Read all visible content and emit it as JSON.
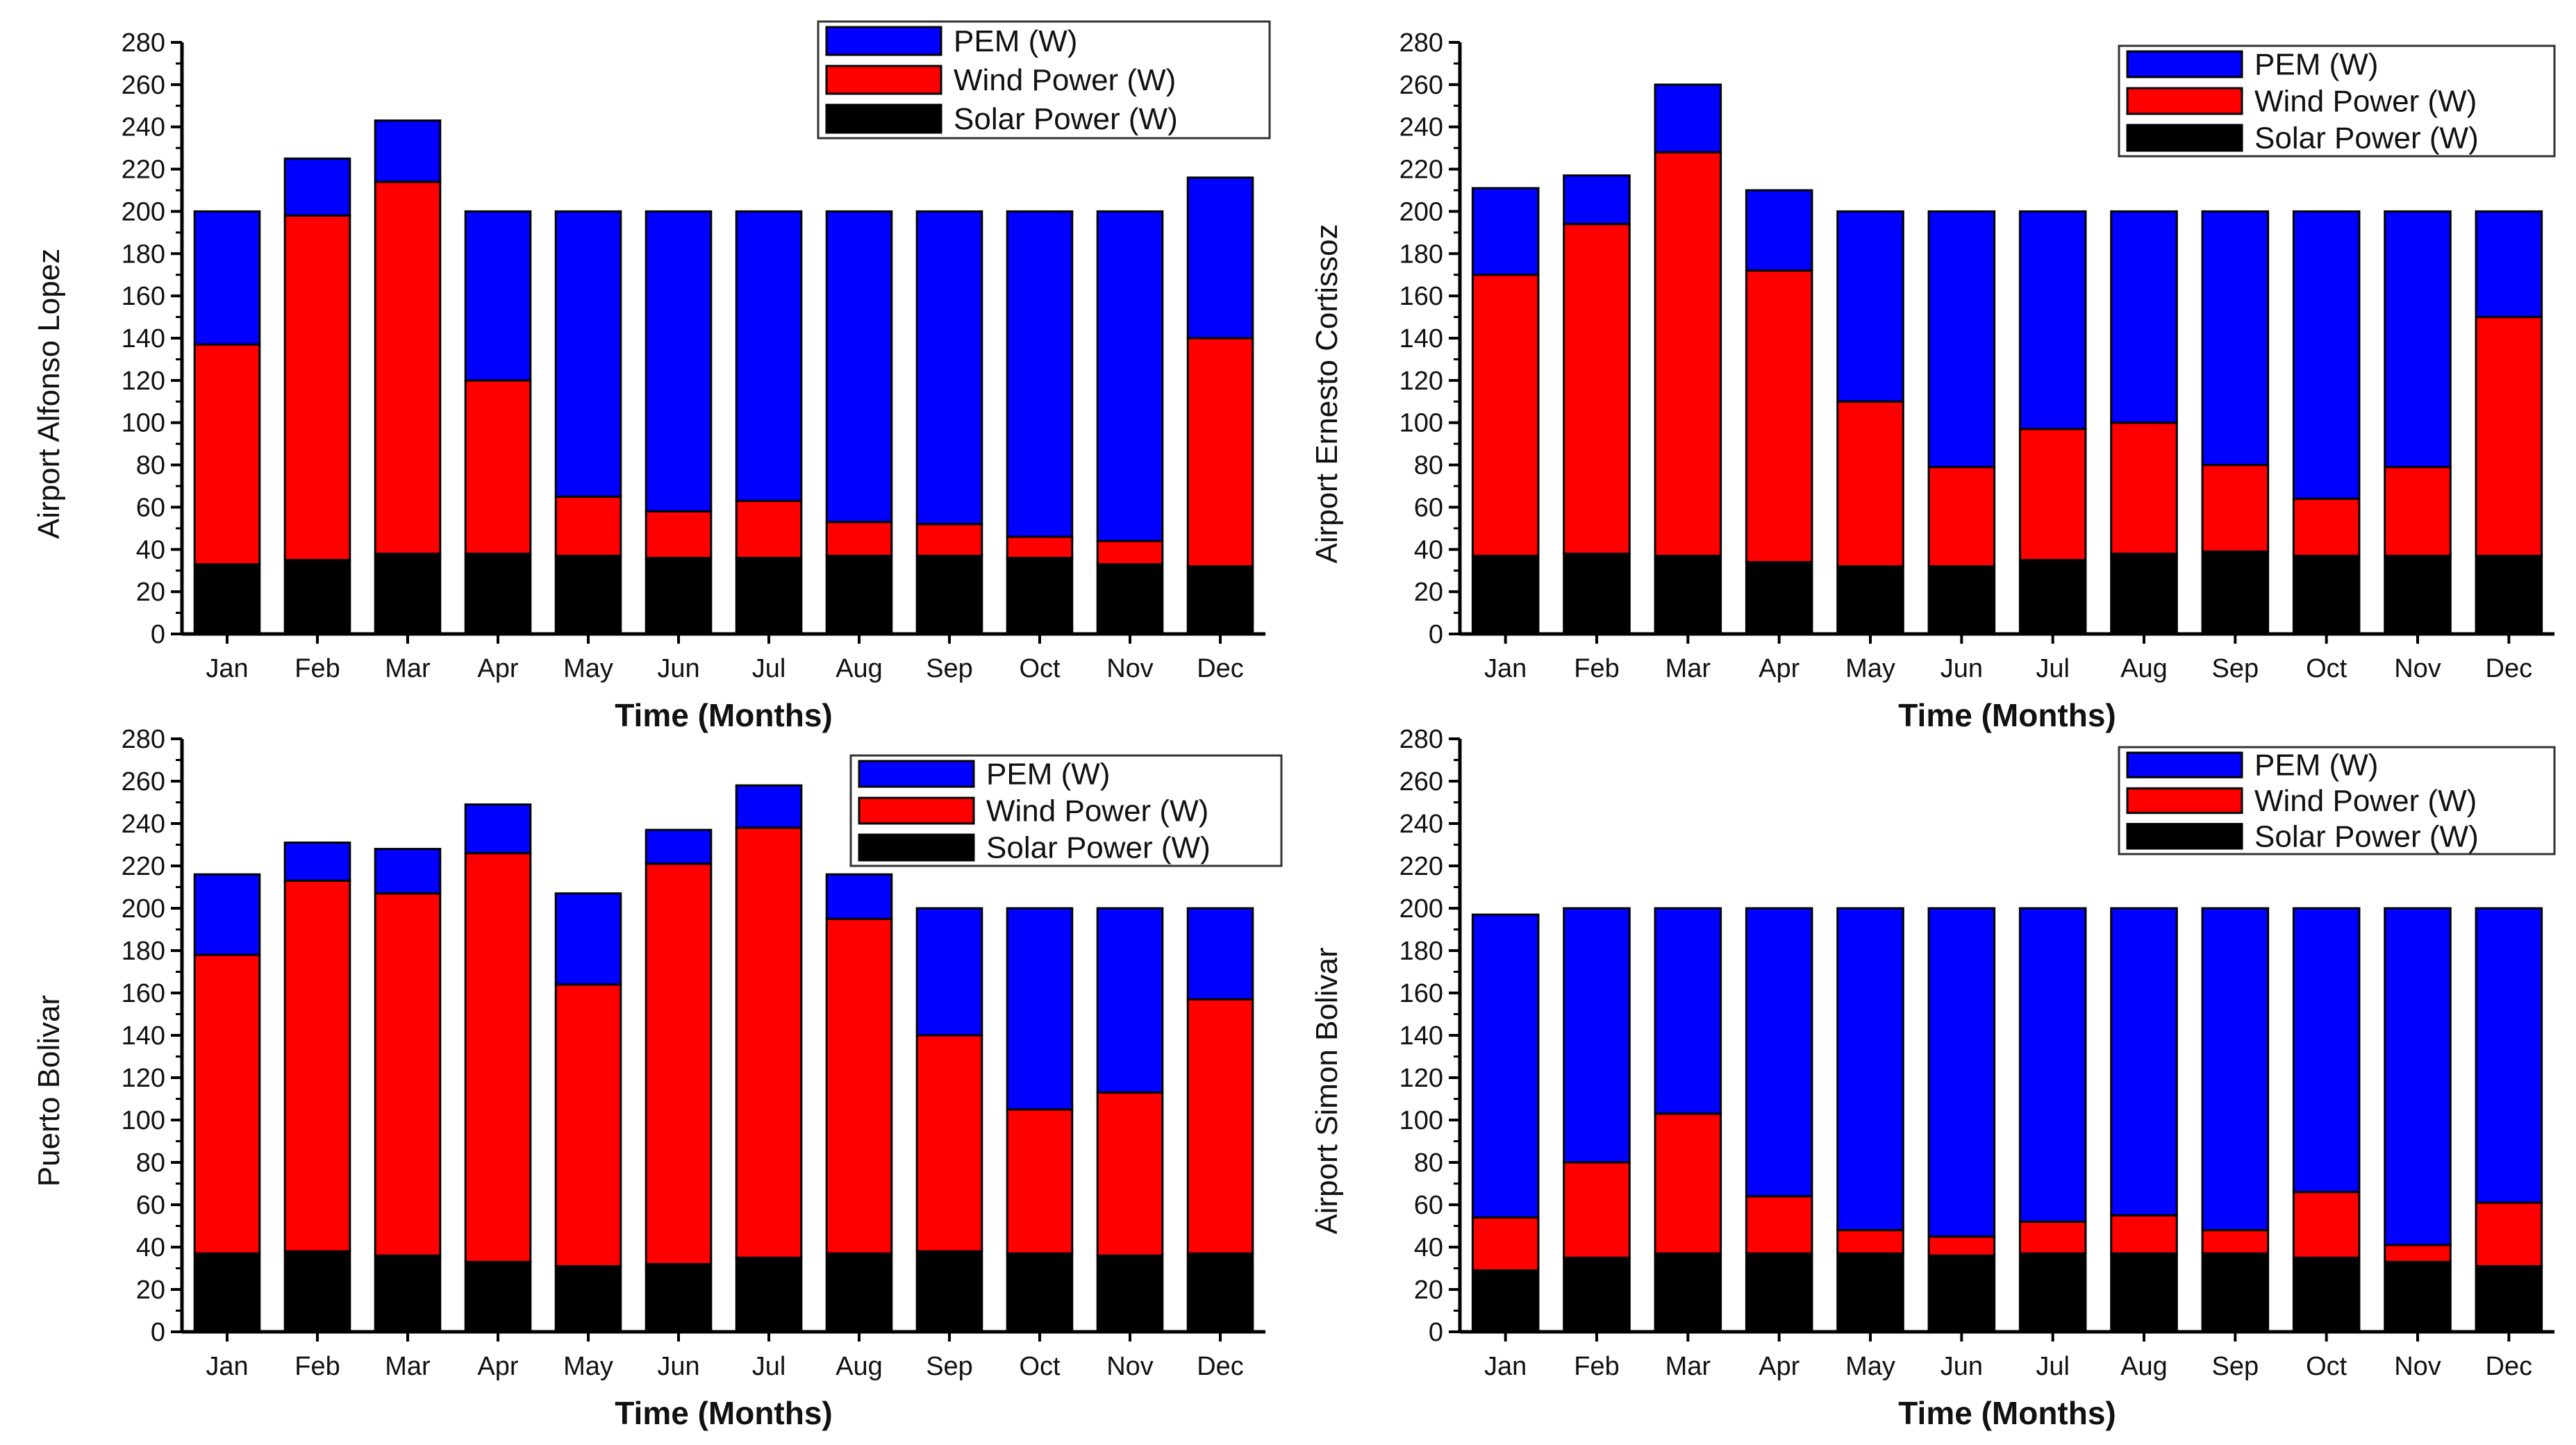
{
  "chart_data": [
    {
      "type": "bar",
      "stacked": true,
      "title": "",
      "xlabel": "Time (Months)",
      "ylabel": "Airport Alfonso Lopez",
      "ylim": [
        0,
        280
      ],
      "yticks": [
        "0",
        "20",
        "40",
        "60",
        "80",
        "100",
        "120",
        "140",
        "160",
        "180",
        "200",
        "220",
        "240",
        "260",
        "280"
      ],
      "legend_position": "top-right",
      "categories": [
        "Jan",
        "Feb",
        "Mar",
        "Apr",
        "May",
        "Jun",
        "Jul",
        "Aug",
        "Sep",
        "Oct",
        "Nov",
        "Dec"
      ],
      "series": [
        {
          "name": "Solar Power (W)",
          "color": "#000000",
          "values": [
            33,
            35,
            38,
            38,
            37,
            36,
            36,
            37,
            37,
            36,
            33,
            32
          ]
        },
        {
          "name": "Wind Power (W)",
          "color": "#ff0000",
          "values": [
            104,
            163,
            176,
            82,
            28,
            22,
            27,
            16,
            15,
            10,
            11,
            108
          ]
        },
        {
          "name": "PEM (W)",
          "color": "#0000ff",
          "values": [
            63,
            27,
            29,
            80,
            135,
            142,
            137,
            147,
            148,
            154,
            156,
            76
          ]
        }
      ]
    },
    {
      "type": "bar",
      "stacked": true,
      "title": "",
      "xlabel": "Time (Months)",
      "ylabel": "Airport Ernesto Cortissoz",
      "ylim": [
        0,
        280
      ],
      "yticks": [
        "0",
        "20",
        "40",
        "60",
        "80",
        "100",
        "120",
        "140",
        "160",
        "180",
        "200",
        "220",
        "240",
        "260",
        "280"
      ],
      "legend_position": "top-right",
      "categories": [
        "Jan",
        "Feb",
        "Mar",
        "Apr",
        "May",
        "Jun",
        "Jul",
        "Aug",
        "Sep",
        "Oct",
        "Nov",
        "Dec"
      ],
      "series": [
        {
          "name": "Solar Power (W)",
          "color": "#000000",
          "values": [
            37,
            38,
            37,
            34,
            32,
            32,
            35,
            38,
            39,
            37,
            37,
            37
          ]
        },
        {
          "name": "Wind Power (W)",
          "color": "#ff0000",
          "values": [
            133,
            156,
            191,
            138,
            78,
            47,
            62,
            62,
            41,
            27,
            42,
            113
          ]
        },
        {
          "name": "PEM (W)",
          "color": "#0000ff",
          "values": [
            41,
            23,
            32,
            38,
            90,
            121,
            103,
            100,
            120,
            136,
            121,
            50
          ]
        }
      ]
    },
    {
      "type": "bar",
      "stacked": true,
      "title": "",
      "xlabel": "Time (Months)",
      "ylabel": "Puerto Bolivar",
      "ylim": [
        0,
        280
      ],
      "yticks": [
        "0",
        "20",
        "40",
        "60",
        "80",
        "100",
        "120",
        "140",
        "160",
        "180",
        "200",
        "220",
        "240",
        "260",
        "280"
      ],
      "legend_position": "top-right",
      "categories": [
        "Jan",
        "Feb",
        "Mar",
        "Apr",
        "May",
        "Jun",
        "Jul",
        "Aug",
        "Sep",
        "Oct",
        "Nov",
        "Dec"
      ],
      "series": [
        {
          "name": "Solar Power (W)",
          "color": "#000000",
          "values": [
            37,
            38,
            36,
            33,
            31,
            32,
            35,
            37,
            38,
            37,
            36,
            37
          ]
        },
        {
          "name": "Wind Power (W)",
          "color": "#ff0000",
          "values": [
            141,
            175,
            171,
            193,
            133,
            189,
            203,
            158,
            102,
            68,
            77,
            120
          ]
        },
        {
          "name": "PEM (W)",
          "color": "#0000ff",
          "values": [
            38,
            18,
            21,
            23,
            43,
            16,
            20,
            21,
            60,
            95,
            87,
            43
          ]
        }
      ]
    },
    {
      "type": "bar",
      "stacked": true,
      "title": "",
      "xlabel": "Time (Months)",
      "ylabel": "Airport Simon Bolivar",
      "ylim": [
        0,
        280
      ],
      "yticks": [
        "0",
        "20",
        "40",
        "60",
        "80",
        "100",
        "120",
        "140",
        "160",
        "180",
        "200",
        "220",
        "240",
        "260",
        "280"
      ],
      "legend_position": "top-right",
      "categories": [
        "Jan",
        "Feb",
        "Mar",
        "Apr",
        "May",
        "Jun",
        "Jul",
        "Aug",
        "Sep",
        "Oct",
        "Nov",
        "Dec"
      ],
      "series": [
        {
          "name": "Solar Power (W)",
          "color": "#000000",
          "values": [
            29,
            35,
            37,
            37,
            37,
            36,
            37,
            37,
            37,
            35,
            33,
            31
          ]
        },
        {
          "name": "Wind Power (W)",
          "color": "#ff0000",
          "values": [
            25,
            45,
            66,
            27,
            11,
            9,
            15,
            18,
            11,
            31,
            8,
            30
          ]
        },
        {
          "name": "PEM (W)",
          "color": "#0000ff",
          "values": [
            143,
            120,
            97,
            136,
            152,
            155,
            148,
            145,
            152,
            134,
            159,
            139
          ]
        }
      ]
    }
  ]
}
